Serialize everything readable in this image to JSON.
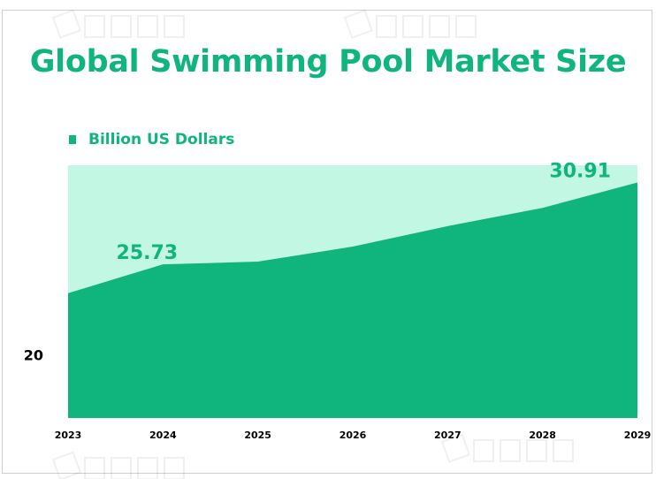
{
  "colors": {
    "accent": "#10b57d",
    "area_fill": "#10b57d",
    "plot_background": "#c2f7e3",
    "axis_text": "#000000"
  },
  "chart_data": {
    "type": "area",
    "title": "Global Swimming Pool Market Size",
    "xlabel": "",
    "ylabel": "",
    "x": [
      "2023",
      "2024",
      "2025",
      "2026",
      "2027",
      "2028",
      "2029"
    ],
    "series": [
      {
        "name": "Billion US Dollars",
        "values": [
          23.9,
          25.73,
          25.9,
          26.85,
          28.15,
          29.3,
          30.91
        ]
      }
    ],
    "data_labels": [
      {
        "x": "2024",
        "text": "25.73"
      },
      {
        "x": "2029",
        "text": "30.91"
      }
    ],
    "y_ticks": [
      "20"
    ],
    "ylim": [
      16,
      32
    ],
    "grid": false,
    "legend_position": "top-left"
  }
}
